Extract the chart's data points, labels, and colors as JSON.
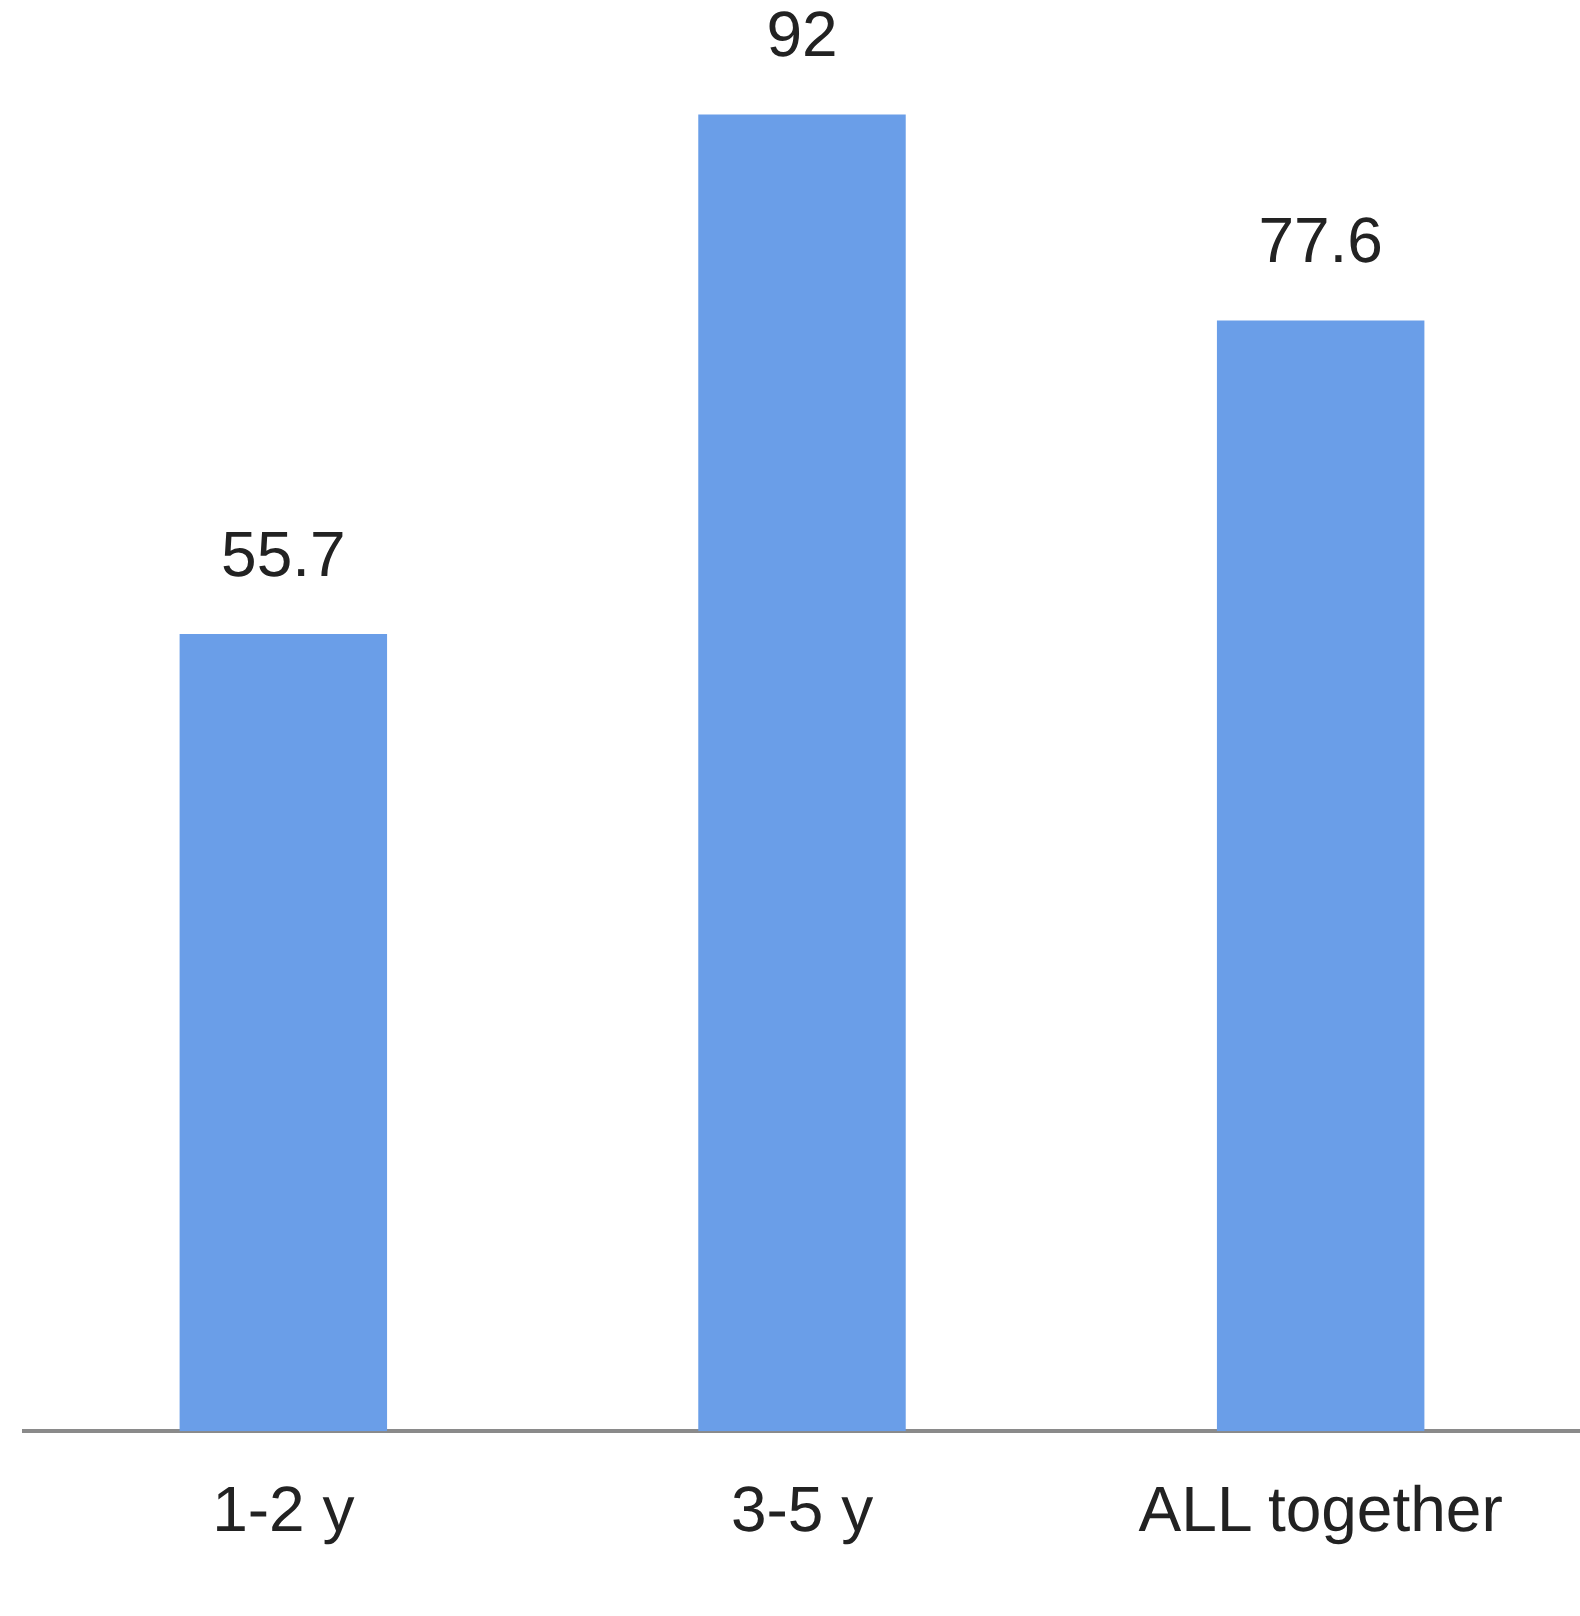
{
  "chart_data": {
    "type": "bar",
    "categories": [
      "1-2 y",
      "3-5 y",
      "ALL together"
    ],
    "values": [
      55.7,
      92,
      77.6
    ],
    "color": "#6a9ee8",
    "data_labels": true,
    "grid": false,
    "legend": false
  }
}
